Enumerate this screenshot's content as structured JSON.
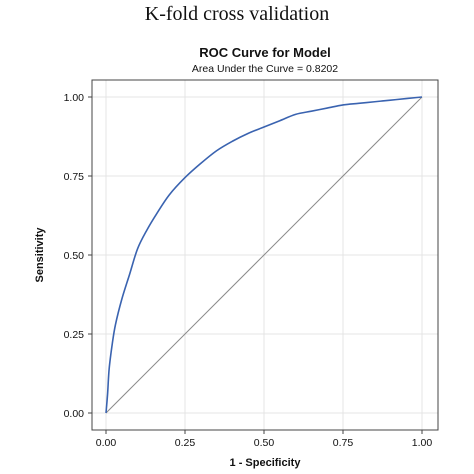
{
  "page": {
    "heading": "K-fold cross validation"
  },
  "chart_data": {
    "type": "line",
    "title": "ROC Curve for Model",
    "subtitle": "Area Under the Curve = 0.8202",
    "xlabel": "1 - Specificity",
    "ylabel": "Sensitivity",
    "xlim": [
      0,
      1
    ],
    "ylim": [
      0,
      1
    ],
    "x_ticks": [
      "0.00",
      "0.25",
      "0.50",
      "0.75",
      "1.00"
    ],
    "y_ticks": [
      "0.00",
      "0.25",
      "0.50",
      "0.75",
      "1.00"
    ],
    "grid": true,
    "legend": "none",
    "colors": {
      "curve": "#3a63b0",
      "reference": "#8a8a8a",
      "grid": "#e4e4e4",
      "frame": "#444444"
    },
    "series": [
      {
        "x": [
          0.0,
          0.005,
          0.01,
          0.02,
          0.03,
          0.05,
          0.075,
          0.1,
          0.13,
          0.16,
          0.2,
          0.25,
          0.3,
          0.35,
          0.4,
          0.45,
          0.5,
          0.55,
          0.6,
          0.65,
          0.7,
          0.75,
          0.8,
          0.85,
          0.9,
          0.95,
          0.98,
          1.0
        ],
        "y": [
          0.0,
          0.06,
          0.14,
          0.22,
          0.28,
          0.36,
          0.44,
          0.52,
          0.58,
          0.63,
          0.69,
          0.745,
          0.79,
          0.83,
          0.86,
          0.885,
          0.905,
          0.925,
          0.945,
          0.955,
          0.965,
          0.975,
          0.98,
          0.985,
          0.99,
          0.995,
          0.998,
          1.0
        ]
      },
      {
        "x": [
          0,
          1
        ],
        "y": [
          0,
          1
        ]
      }
    ]
  }
}
